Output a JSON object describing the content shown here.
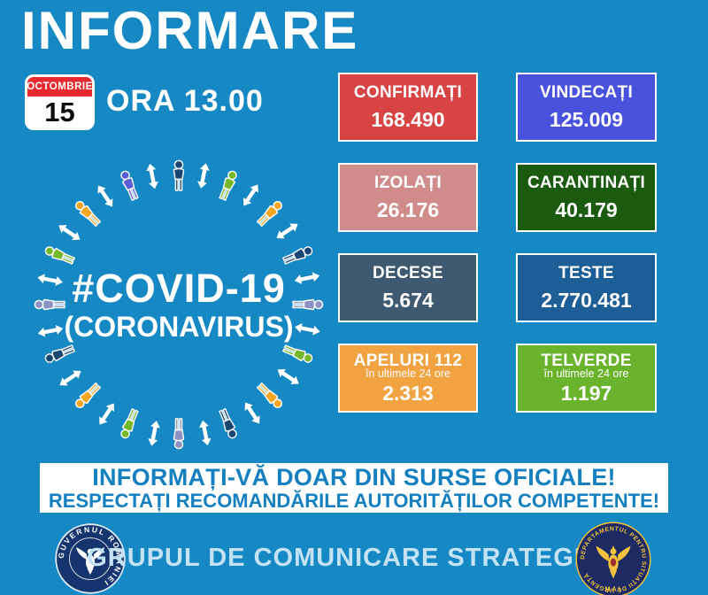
{
  "title": "INFORMARE",
  "date_badge": {
    "month": "OCTOMBRIE",
    "day": "15"
  },
  "time_label": "ORA 13.00",
  "circle_center": {
    "hashtag": "#COVID-19",
    "sub": "(CORONAVIRUS)"
  },
  "colors": {
    "background": "#1689c4",
    "calendar_red": "#e62a2f",
    "band_text_blue": "#1480bf",
    "footer_text": "#c3e3f5",
    "arrow_white": "#ffffff"
  },
  "circle": {
    "people_colors": [
      "#1b4672",
      "#76b82a",
      "#f5a623",
      "#1b4672",
      "#8d92c4",
      "#76b82a",
      "#f5a623",
      "#1b4672",
      "#8d92c4",
      "#76b82a",
      "#f5a623",
      "#1b4672",
      "#8d92c4",
      "#76b82a",
      "#f5a623",
      "#5b5fd6"
    ]
  },
  "tiles": [
    {
      "label": "CONFIRMAȚI",
      "value": "168.490",
      "color": "#d84344"
    },
    {
      "label": "VINDECAȚI",
      "value": "125.009",
      "color": "#4a52dd"
    },
    {
      "label": "IZOLAȚI",
      "value": "26.176",
      "color": "#cf8c8a"
    },
    {
      "label": "CARANTINAȚI",
      "value": "40.179",
      "color": "#1a5b10"
    },
    {
      "label": "DECESE",
      "value": "5.674",
      "color": "#3f5a70"
    },
    {
      "label": "TESTE",
      "value": "2.770.481",
      "color": "#1d5e96"
    },
    {
      "label": "APELURI 112",
      "sublabel": "în ultimele 24 ore",
      "value": "2.313",
      "color": "#f0a340"
    },
    {
      "label": "TELVERDE",
      "sublabel": "în ultimele 24 ore",
      "value": "1.197",
      "color": "#6ab32c"
    }
  ],
  "band": {
    "line1": "INFORMAȚI-VĂ DOAR DIN SURSE OFICIALE!",
    "line2": "RESPECTAȚI RECOMANDĂRILE AUTORITĂȚILOR COMPETENTE!"
  },
  "footer": {
    "label": "GRUPUL DE COMUNICARE STRATEGICĂ",
    "left_logo": {
      "ring_text": "GUVERNUL ROMÂNIEI"
    },
    "right_logo": {
      "ring_text": "DEPARTAMENTUL PENTRU SITUAȚII DE URGENȚĂ",
      "bottom_text": "M.A.I."
    }
  }
}
